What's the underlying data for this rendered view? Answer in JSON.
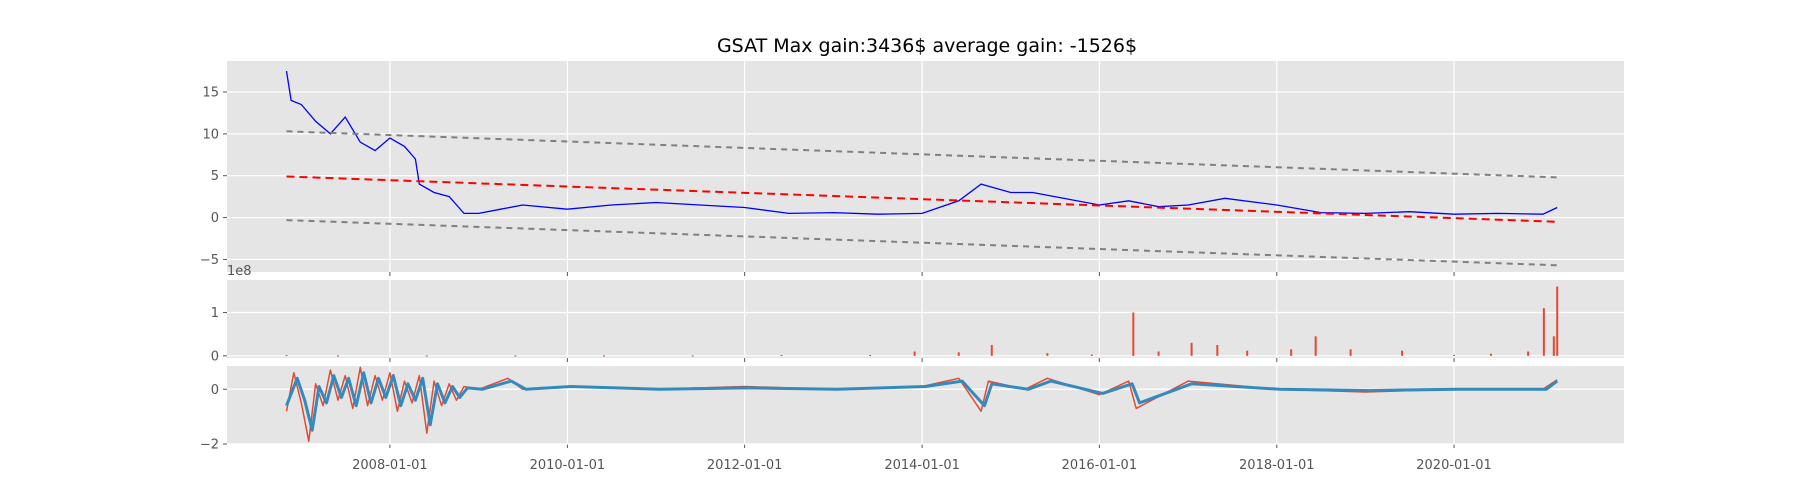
{
  "title": "GSAT Max gain:3436$  average gain: -1526$",
  "colors": {
    "price": "#0000ff",
    "trend": "#ff0000",
    "band": "#808080",
    "volume": "#e24a33",
    "osc_fast": "#e24a33",
    "osc_slow": "#348abd",
    "panel_bg": "#e5e5e5",
    "grid": "#ffffff"
  },
  "chart_data": [
    {
      "type": "line",
      "panel": "price",
      "title": "GSAT Max gain:3436$  average gain: -1526$",
      "xlabel": "",
      "ylabel": "",
      "x_ticks": [
        "2008-01-01",
        "2010-01-01",
        "2012-01-01",
        "2014-01-01",
        "2016-01-01",
        "2018-01-01",
        "2020-01-01"
      ],
      "y_ticks": [
        "−5",
        "0",
        "5",
        "10",
        "15"
      ],
      "xlim": [
        "2006-03-01",
        "2021-12-01"
      ],
      "ylim": [
        -6.5,
        18.7
      ],
      "grid": true,
      "series": [
        {
          "role": "price",
          "x": [
            "2006-11-01",
            "2006-11-20",
            "2007-01-01",
            "2007-03-01",
            "2007-05-01",
            "2007-07-01",
            "2007-09-01",
            "2007-11-01",
            "2008-01-01",
            "2008-03-01",
            "2008-04-15",
            "2008-05-01",
            "2008-07-01",
            "2008-09-01",
            "2008-11-01",
            "2009-01-01",
            "2009-04-01",
            "2009-07-01",
            "2010-01-01",
            "2010-07-01",
            "2011-01-01",
            "2011-07-01",
            "2012-01-01",
            "2012-07-01",
            "2013-01-01",
            "2013-07-01",
            "2014-01-01",
            "2014-06-01",
            "2014-09-01",
            "2015-01-01",
            "2015-04-01",
            "2015-07-01",
            "2016-01-01",
            "2016-05-01",
            "2016-09-01",
            "2017-01-01",
            "2017-06-01",
            "2018-01-01",
            "2018-07-01",
            "2019-01-01",
            "2019-07-01",
            "2020-01-01",
            "2020-07-01",
            "2021-01-01",
            "2021-03-01"
          ],
          "y": [
            17.5,
            14.0,
            13.5,
            11.5,
            10.0,
            12.0,
            9.0,
            8.0,
            9.5,
            8.5,
            7.0,
            4.0,
            3.0,
            2.5,
            0.5,
            0.5,
            1.0,
            1.5,
            1.0,
            1.5,
            1.8,
            1.5,
            1.2,
            0.5,
            0.6,
            0.4,
            0.5,
            2.0,
            4.0,
            3.0,
            3.0,
            2.5,
            1.5,
            2.0,
            1.3,
            1.5,
            2.3,
            1.5,
            0.6,
            0.5,
            0.7,
            0.4,
            0.5,
            0.4,
            1.2
          ]
        },
        {
          "role": "trend",
          "x": [
            "2006-11-01",
            "2021-03-01"
          ],
          "y": [
            4.9,
            -0.5
          ]
        },
        {
          "role": "upper band",
          "x": [
            "2006-11-01",
            "2021-03-01"
          ],
          "y": [
            10.3,
            4.8
          ]
        },
        {
          "role": "lower band",
          "x": [
            "2006-11-01",
            "2021-03-01"
          ],
          "y": [
            -0.3,
            -5.7
          ]
        }
      ]
    },
    {
      "type": "bar",
      "panel": "volume",
      "y_ticks": [
        "0",
        "1"
      ],
      "y_offset_label": "1e8",
      "ylim": [
        -0.05,
        1.75
      ],
      "grid": true,
      "x": [
        "2006-11-01",
        "2007-06-01",
        "2008-06-01",
        "2009-06-01",
        "2010-06-01",
        "2011-06-01",
        "2012-06-01",
        "2013-06-01",
        "2013-12-01",
        "2014-06-01",
        "2014-10-15",
        "2015-06-01",
        "2015-12-01",
        "2016-05-20",
        "2016-09-01",
        "2017-01-15",
        "2017-05-01",
        "2017-09-01",
        "2018-03-01",
        "2018-06-10",
        "2018-11-01",
        "2019-06-01",
        "2020-01-01",
        "2020-06-01",
        "2020-11-01",
        "2021-01-05",
        "2021-02-15",
        "2021-03-01"
      ],
      "values": [
        0.02,
        0.01,
        0.01,
        0.01,
        0.01,
        0.01,
        0.02,
        0.02,
        0.1,
        0.08,
        0.25,
        0.06,
        0.03,
        1.0,
        0.1,
        0.3,
        0.25,
        0.12,
        0.15,
        0.45,
        0.15,
        0.12,
        0.02,
        0.05,
        0.1,
        1.1,
        0.45,
        1.6
      ]
    },
    {
      "type": "line",
      "panel": "oscillator",
      "y_ticks": [
        "−2",
        "0"
      ],
      "ylim": [
        -2.0,
        0.85
      ],
      "grid": true,
      "series": [
        {
          "role": "fast",
          "x": [
            "2006-11-01",
            "2006-12-01",
            "2007-01-01",
            "2007-02-01",
            "2007-03-01",
            "2007-04-01",
            "2007-05-01",
            "2007-06-01",
            "2007-07-01",
            "2007-08-01",
            "2007-09-01",
            "2007-10-01",
            "2007-11-01",
            "2007-12-01",
            "2008-01-01",
            "2008-02-01",
            "2008-03-01",
            "2008-04-01",
            "2008-05-01",
            "2008-06-01",
            "2008-07-01",
            "2008-08-01",
            "2008-09-01",
            "2008-10-01",
            "2008-11-01",
            "2009-01-01",
            "2009-05-01",
            "2009-07-01",
            "2010-01-01",
            "2011-01-01",
            "2012-01-01",
            "2013-01-01",
            "2014-01-01",
            "2014-06-01",
            "2014-09-01",
            "2014-10-01",
            "2015-03-01",
            "2015-06-01",
            "2016-01-01",
            "2016-05-01",
            "2016-06-01",
            "2017-01-01",
            "2018-01-01",
            "2019-01-01",
            "2020-01-01",
            "2021-01-01",
            "2021-03-01"
          ],
          "y": [
            -0.8,
            0.6,
            -0.5,
            -1.9,
            0.2,
            -0.6,
            0.7,
            -0.4,
            0.5,
            -0.7,
            0.8,
            -0.6,
            0.5,
            -0.4,
            0.6,
            -0.8,
            0.3,
            -0.5,
            0.5,
            -1.6,
            0.3,
            -0.6,
            0.2,
            -0.4,
            0.1,
            0.0,
            0.4,
            0.0,
            0.1,
            0.0,
            0.1,
            0.0,
            0.1,
            0.4,
            -0.8,
            0.3,
            0.0,
            0.4,
            -0.2,
            0.3,
            -0.7,
            0.3,
            0.0,
            -0.1,
            0.0,
            0.0,
            0.35
          ]
        },
        {
          "role": "slow",
          "x": [
            "2006-11-01",
            "2006-12-15",
            "2007-01-15",
            "2007-02-15",
            "2007-03-15",
            "2007-04-15",
            "2007-05-15",
            "2007-06-15",
            "2007-07-15",
            "2007-08-15",
            "2007-09-15",
            "2007-10-15",
            "2007-11-15",
            "2007-12-15",
            "2008-01-15",
            "2008-02-15",
            "2008-03-15",
            "2008-04-15",
            "2008-05-15",
            "2008-06-15",
            "2008-07-15",
            "2008-08-15",
            "2008-09-15",
            "2008-10-15",
            "2008-11-15",
            "2009-01-15",
            "2009-05-15",
            "2009-07-15",
            "2010-01-15",
            "2011-01-15",
            "2012-01-15",
            "2013-01-15",
            "2014-01-15",
            "2014-06-15",
            "2014-09-15",
            "2014-10-15",
            "2015-03-15",
            "2015-06-15",
            "2016-01-15",
            "2016-05-15",
            "2016-06-15",
            "2017-01-15",
            "2018-01-15",
            "2019-01-15",
            "2020-01-15",
            "2021-01-15",
            "2021-03-01"
          ],
          "y": [
            -0.6,
            0.4,
            -0.4,
            -1.5,
            0.1,
            -0.5,
            0.5,
            -0.3,
            0.4,
            -0.6,
            0.6,
            -0.5,
            0.4,
            -0.3,
            0.5,
            -0.6,
            0.2,
            -0.4,
            0.4,
            -1.3,
            0.2,
            -0.5,
            0.1,
            -0.3,
            0.05,
            0.0,
            0.3,
            0.0,
            0.1,
            0.0,
            0.05,
            0.0,
            0.1,
            0.3,
            -0.6,
            0.2,
            0.0,
            0.3,
            -0.15,
            0.2,
            -0.5,
            0.2,
            0.0,
            -0.05,
            0.0,
            0.0,
            0.3
          ]
        }
      ]
    }
  ]
}
